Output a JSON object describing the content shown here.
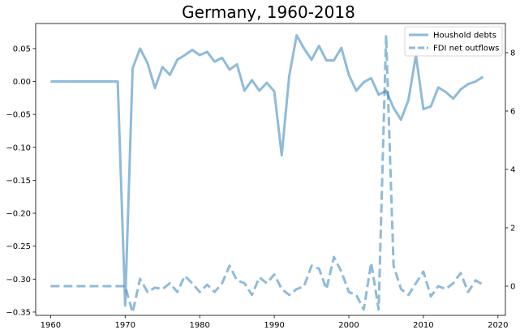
{
  "chart_data": {
    "type": "line",
    "title": "Germany, 1960-2018",
    "xlabel": "",
    "ylabel_left": "",
    "ylabel_right": "",
    "xlim": [
      1958,
      2021
    ],
    "ylim_left": [
      -0.355,
      0.088
    ],
    "ylim_right": [
      -1.0,
      9.0
    ],
    "x_ticks": [
      1960,
      1970,
      1980,
      1990,
      2000,
      2010,
      2020
    ],
    "y_left_ticks": [
      0.05,
      0.0,
      -0.05,
      -0.1,
      -0.15,
      -0.2,
      -0.25,
      -0.3,
      -0.35
    ],
    "y_left_tick_labels": [
      "0.05",
      "0.00",
      "−0.05",
      "−0.10",
      "−0.15",
      "−0.20",
      "−0.25",
      "−0.30",
      "−0.35"
    ],
    "y_right_ticks": [
      0,
      2,
      4,
      6,
      8
    ],
    "y_right_tick_labels": [
      "0",
      "2",
      "4",
      "6",
      "8"
    ],
    "grid": false,
    "legend_position": "top-right",
    "series": [
      {
        "name": "Houshold debts",
        "axis": "left",
        "style": "solid",
        "color": "#1f77b4",
        "x": [
          1960,
          1961,
          1962,
          1963,
          1964,
          1965,
          1966,
          1967,
          1968,
          1969,
          1970,
          1971,
          1972,
          1973,
          1974,
          1975,
          1976,
          1977,
          1978,
          1979,
          1980,
          1981,
          1982,
          1983,
          1984,
          1985,
          1986,
          1987,
          1988,
          1989,
          1990,
          1991,
          1992,
          1993,
          1994,
          1995,
          1996,
          1997,
          1998,
          1999,
          2000,
          2001,
          2002,
          2003,
          2004,
          2005,
          2006,
          2007,
          2008,
          2009,
          2010,
          2011,
          2012,
          2013,
          2014,
          2015,
          2016,
          2017,
          2018
        ],
        "values": [
          0,
          0,
          0,
          0,
          0,
          0,
          0,
          0,
          0,
          0,
          -0.34,
          0.02,
          0.05,
          0.028,
          -0.01,
          0.022,
          0.01,
          0.033,
          0.04,
          0.048,
          0.04,
          0.045,
          0.03,
          0.036,
          0.018,
          0.026,
          -0.014,
          0.002,
          -0.014,
          -0.002,
          -0.015,
          -0.112,
          0.008,
          0.07,
          0.05,
          0.033,
          0.054,
          0.032,
          0.032,
          0.051,
          0.01,
          -0.014,
          -0.001,
          0.005,
          -0.02,
          -0.014,
          -0.04,
          -0.058,
          -0.028,
          0.04,
          -0.042,
          -0.038,
          -0.009,
          -0.016,
          -0.026,
          -0.012,
          -0.004,
          0,
          0.007
        ]
      },
      {
        "name": "FDI net outflows",
        "axis": "right",
        "style": "dashed",
        "color": "#1f77b4",
        "x": [
          1960,
          1961,
          1962,
          1963,
          1964,
          1965,
          1966,
          1967,
          1968,
          1969,
          1970,
          1971,
          1972,
          1973,
          1974,
          1975,
          1976,
          1977,
          1978,
          1979,
          1980,
          1981,
          1982,
          1983,
          1984,
          1985,
          1986,
          1987,
          1988,
          1989,
          1990,
          1991,
          1992,
          1993,
          1994,
          1995,
          1996,
          1997,
          1998,
          1999,
          2000,
          2001,
          2002,
          2003,
          2004,
          2005,
          2006,
          2007,
          2008,
          2009,
          2010,
          2011,
          2012,
          2013,
          2014,
          2015,
          2016,
          2017,
          2018
        ],
        "values": [
          0,
          0,
          0,
          0,
          0,
          0,
          0,
          0,
          0,
          0,
          0,
          -0.9,
          0.25,
          -0.2,
          -0.05,
          -0.1,
          0.1,
          -0.2,
          0.35,
          0.1,
          -0.2,
          0.05,
          -0.2,
          0.1,
          0.7,
          0.2,
          0.1,
          -0.3,
          0.3,
          0.1,
          0.4,
          -0.1,
          -0.3,
          -0.1,
          0,
          0.7,
          0.6,
          -0.1,
          1.0,
          0.5,
          -0.2,
          -0.3,
          -0.8,
          0.8,
          -0.8,
          8.6,
          0.7,
          -0.1,
          -0.3,
          0.1,
          0.5,
          -0.35,
          0,
          -0.1,
          0.1,
          0.45,
          -0.2,
          0.2,
          0.05
        ]
      }
    ]
  }
}
